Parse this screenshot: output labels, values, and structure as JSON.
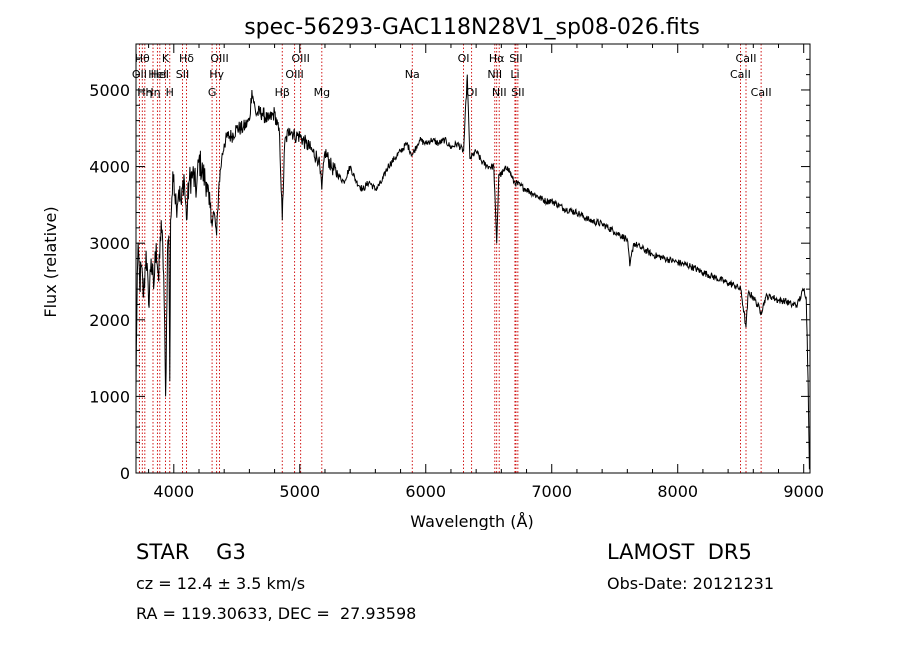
{
  "chart_data": {
    "type": "line",
    "title": "spec-56293-GAC118N28V1_sp08-026.fits",
    "xlabel": "Wavelength (Å)",
    "ylabel": "Flux (relative)",
    "xlim": [
      3700,
      9050
    ],
    "ylim": [
      0,
      5600
    ],
    "xticks": [
      4000,
      5000,
      6000,
      7000,
      8000,
      9000
    ],
    "yticks": [
      0,
      1000,
      2000,
      3000,
      4000,
      5000
    ],
    "grid": false,
    "series": [
      {
        "x": [
          3700,
          3710,
          3720,
          3730,
          3740,
          3760,
          3780,
          3800,
          3820,
          3840,
          3860,
          3880,
          3900,
          3920,
          3935,
          3950,
          3960,
          3968,
          3975,
          3985,
          4000,
          4020,
          4040,
          4060,
          4080,
          4101,
          4120,
          4150,
          4180,
          4200,
          4230,
          4260,
          4280,
          4300,
          4320,
          4340,
          4360,
          4380,
          4400,
          4430,
          4460,
          4500,
          4550,
          4600,
          4620,
          4650,
          4700,
          4750,
          4800,
          4840,
          4861,
          4880,
          4920,
          4960,
          5000,
          5050,
          5100,
          5150,
          5175,
          5200,
          5250,
          5300,
          5350,
          5400,
          5450,
          5500,
          5550,
          5600,
          5650,
          5700,
          5750,
          5800,
          5850,
          5893,
          5950,
          6000,
          6050,
          6100,
          6150,
          6200,
          6250,
          6300,
          6330,
          6350,
          6400,
          6450,
          6500,
          6540,
          6563,
          6580,
          6600,
          6650,
          6700,
          6750,
          6800,
          6850,
          6900,
          6950,
          7000,
          7100,
          7200,
          7300,
          7400,
          7500,
          7600,
          7620,
          7650,
          7700,
          7800,
          7900,
          8000,
          8100,
          8200,
          8300,
          8400,
          8450,
          8500,
          8542,
          8560,
          8600,
          8662,
          8700,
          8750,
          8800,
          8850,
          8900,
          8950,
          9000,
          9020,
          9035,
          9045
        ],
        "values": [
          1100,
          2600,
          2900,
          2400,
          2700,
          2300,
          2900,
          2200,
          2800,
          2400,
          3000,
          2500,
          3300,
          2600,
          1000,
          2900,
          3100,
          1200,
          3300,
          3600,
          3900,
          3500,
          3700,
          3500,
          3900,
          3300,
          3800,
          3900,
          3700,
          4100,
          3900,
          3800,
          3500,
          3300,
          3400,
          3100,
          3800,
          4100,
          4300,
          4400,
          4400,
          4500,
          4500,
          4600,
          5000,
          4700,
          4700,
          4600,
          4700,
          4400,
          3300,
          4300,
          4500,
          4400,
          4400,
          4300,
          4200,
          4100,
          3700,
          4200,
          4000,
          3900,
          3800,
          4000,
          3800,
          3700,
          3800,
          3700,
          3800,
          4000,
          4100,
          4200,
          4300,
          4150,
          4350,
          4300,
          4350,
          4300,
          4350,
          4250,
          4300,
          4200,
          5200,
          4100,
          4200,
          4050,
          4000,
          4000,
          3000,
          3900,
          3900,
          4000,
          3800,
          3750,
          3700,
          3650,
          3600,
          3550,
          3550,
          3450,
          3400,
          3300,
          3250,
          3150,
          3050,
          2700,
          3000,
          2950,
          2850,
          2800,
          2750,
          2700,
          2620,
          2550,
          2480,
          2450,
          2400,
          1900,
          2350,
          2300,
          2100,
          2300,
          2300,
          2250,
          2250,
          2200,
          2200,
          2400,
          2300,
          1200,
          50
        ]
      }
    ],
    "lines": [
      {
        "x": 3727,
        "label": "OII",
        "row": 1
      },
      {
        "x": 3750,
        "label": "Hθ",
        "row": 0
      },
      {
        "x": 3770,
        "label": "Hη",
        "row": 2
      },
      {
        "x": 3835,
        "label": "Hη",
        "row": 2
      },
      {
        "x": 3870,
        "label": "HeI",
        "row": 1
      },
      {
        "x": 3889,
        "label": "HeI",
        "row": 1
      },
      {
        "x": 3934,
        "label": "K",
        "row": 0
      },
      {
        "x": 3968,
        "label": "H",
        "row": 2
      },
      {
        "x": 4069,
        "label": "SII",
        "row": 1
      },
      {
        "x": 4101,
        "label": "Hδ",
        "row": 0
      },
      {
        "x": 4304,
        "label": "G",
        "row": 2
      },
      {
        "x": 4340,
        "label": "Hγ",
        "row": 1
      },
      {
        "x": 4363,
        "label": "OIII",
        "row": 0
      },
      {
        "x": 4861,
        "label": "Hβ",
        "row": 2
      },
      {
        "x": 4959,
        "label": "OIII",
        "row": 1
      },
      {
        "x": 5007,
        "label": "OIII",
        "row": 0
      },
      {
        "x": 5175,
        "label": "Mg",
        "row": 2
      },
      {
        "x": 5893,
        "label": "Na",
        "row": 1
      },
      {
        "x": 6300,
        "label": "OI",
        "row": 0
      },
      {
        "x": 6364,
        "label": "OI",
        "row": 2
      },
      {
        "x": 6548,
        "label": "NII",
        "row": 1
      },
      {
        "x": 6563,
        "label": "Hα",
        "row": 0
      },
      {
        "x": 6583,
        "label": "NII",
        "row": 2
      },
      {
        "x": 6708,
        "label": "Li",
        "row": 1
      },
      {
        "x": 6716,
        "label": "SII",
        "row": 0
      },
      {
        "x": 6731,
        "label": "SII",
        "row": 2
      },
      {
        "x": 8498,
        "label": "CaII",
        "row": 1
      },
      {
        "x": 8542,
        "label": "CaII",
        "row": 0
      },
      {
        "x": 8662,
        "label": "CaII",
        "row": 2
      }
    ]
  },
  "footer": {
    "object_class": "STAR    G3",
    "survey": "LAMOST  DR5",
    "redshift": "cz = 12.4 ± 3.5 km/s",
    "obs_date": "Obs-Date: 20121231",
    "radec": "RA = 119.30633, DEC =  27.93598"
  },
  "colors": {
    "spectrum": "#000000",
    "line_markers": "#cc0000",
    "axes": "#000000"
  }
}
